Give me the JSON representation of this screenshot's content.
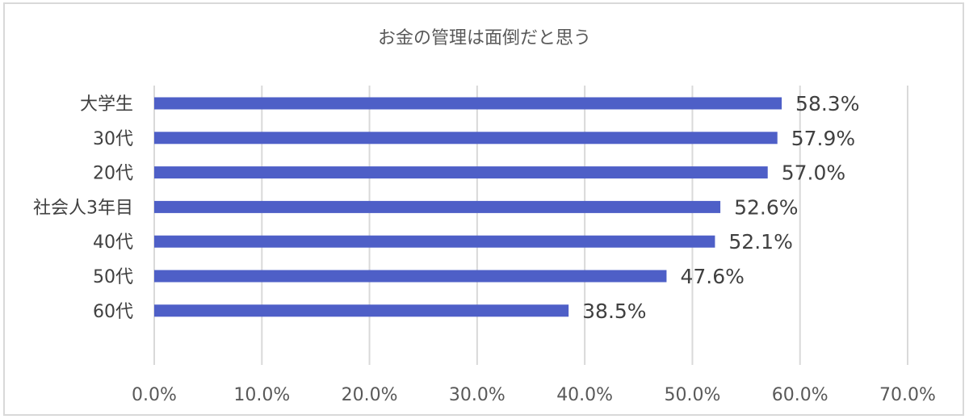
{
  "chart_data": {
    "type": "bar",
    "orientation": "horizontal",
    "title": "お金の管理は面倒だと思う",
    "xlabel": "",
    "ylabel": "",
    "categories": [
      "大学生",
      "30代",
      "20代",
      "社会人3年目",
      "40代",
      "50代",
      "60代"
    ],
    "values": [
      58.3,
      57.9,
      57.0,
      52.6,
      52.1,
      47.6,
      38.5
    ],
    "data_labels": [
      "58.3%",
      "57.9%",
      "57.0%",
      "52.6%",
      "52.1%",
      "47.6%",
      "38.5%"
    ],
    "xlim": [
      0,
      70
    ],
    "x_ticks": [
      0,
      10,
      20,
      30,
      40,
      50,
      60,
      70
    ],
    "x_tick_labels": [
      "0.0%",
      "10.0%",
      "20.0%",
      "30.0%",
      "40.0%",
      "50.0%",
      "60.0%",
      "70.0%"
    ],
    "grid": "vertical",
    "legend": "none",
    "colors": {
      "bar": "#4e5fc7",
      "grid": "#d9d9d9",
      "text": "#404040"
    }
  }
}
